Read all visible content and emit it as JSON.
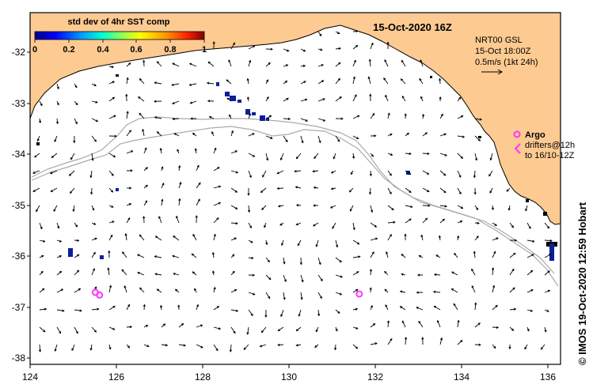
{
  "title": "15-Oct-2020 16Z",
  "colorbar": {
    "label": "std dev of 4hr SST comp",
    "ticks": [
      "0",
      "0.2",
      "0.4",
      "0.6",
      "0.8",
      "1"
    ],
    "colors": [
      "#00008f",
      "#0000ff",
      "#00a0ff",
      "#00ffd0",
      "#80ff60",
      "#ffff00",
      "#ff9000",
      "#ff2000",
      "#800000"
    ]
  },
  "current_legend": {
    "line1": "NRT00 GSL",
    "line2": "15-Oct 18:00Z",
    "line3": "0.5m/s (1kt 24h)"
  },
  "argo_legend": {
    "title": "Argo",
    "line1": "drifters@12h",
    "line2": "to 16/10-12Z",
    "color": "#ff33ff"
  },
  "credit": "© IMOS 19-Oct-2020 12:59 Hobart",
  "x_ticks": [
    "124",
    "126",
    "128",
    "130",
    "132",
    "134",
    "136"
  ],
  "y_ticks": [
    "-32",
    "-33",
    "-34",
    "-35",
    "-36",
    "-37",
    "-38"
  ],
  "x_range": [
    124,
    136.6
  ],
  "y_range": [
    -38.05,
    -31.3
  ],
  "colors": {
    "land": "#fdca91",
    "coast": "#000000",
    "shelf_contour": "#aaaaaa",
    "sst_blob": "#0a1f9c",
    "argo": "#ff33ff"
  },
  "argo_floats": [
    {
      "lon": 125.55,
      "lat": -36.67
    },
    {
      "lon": 125.65,
      "lat": -36.72
    },
    {
      "lon": 131.82,
      "lat": -36.7
    }
  ]
}
